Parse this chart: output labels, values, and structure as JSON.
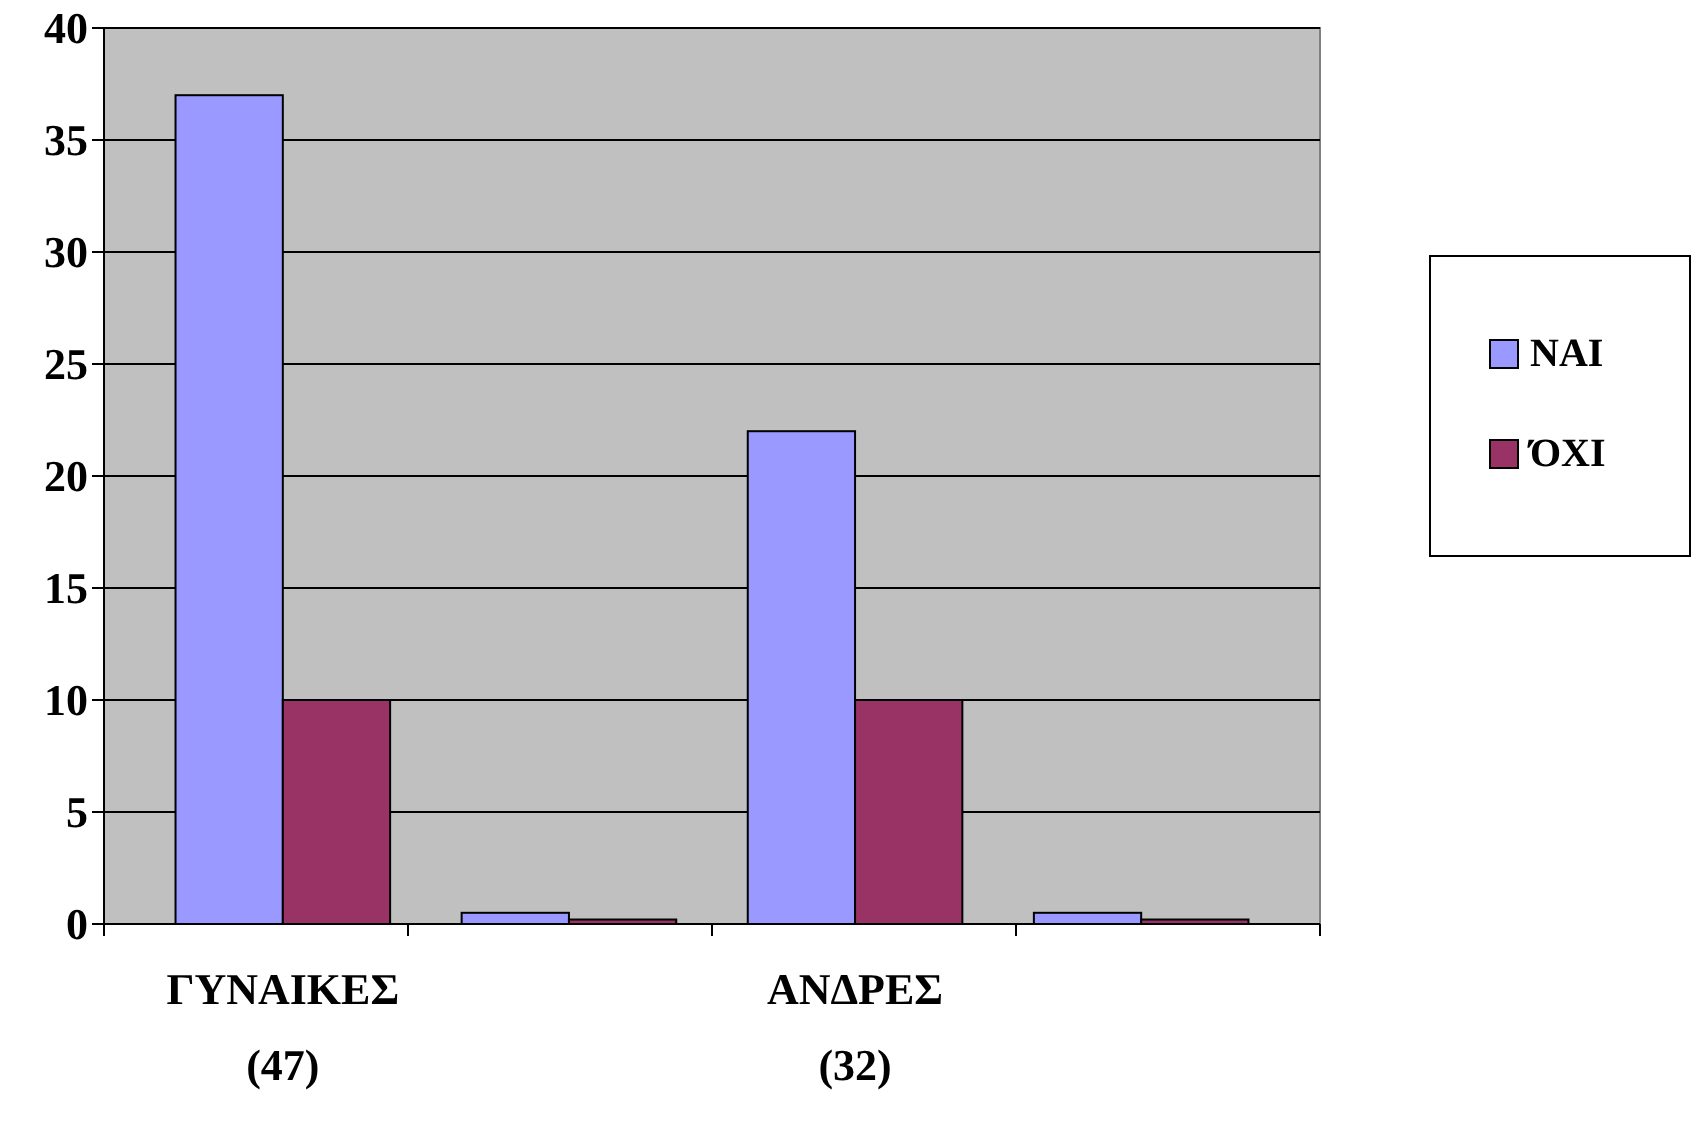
{
  "chart_data": {
    "type": "bar",
    "categories": [
      "ΓΥΝΑΙΚΕΣ\n(47)",
      null,
      "ΑΝΔΡΕΣ\n(32)",
      null
    ],
    "series": [
      {
        "name": "ΝΑΙ",
        "color": "#9999ff",
        "values": [
          37,
          0.5,
          22,
          0.5
        ]
      },
      {
        "name": "ΌΧΙ",
        "color": "#993366",
        "values": [
          10,
          0.2,
          10,
          0.2
        ]
      }
    ],
    "ylim": [
      0,
      40
    ],
    "yticks": [
      0,
      5,
      10,
      15,
      20,
      25,
      30,
      35,
      40
    ],
    "grid": "y",
    "legend": "right"
  }
}
